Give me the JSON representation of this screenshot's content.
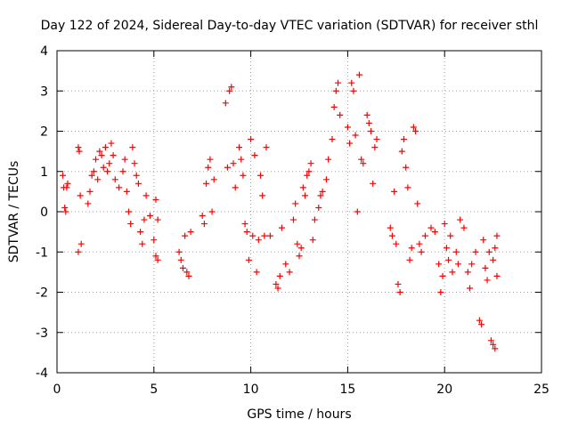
{
  "chart_data": {
    "type": "scatter",
    "title": "Day 122 of 2024, Sidereal Day-to-day VTEC variation (SDTVAR) for receiver sthl",
    "xlabel": "GPS time / hours",
    "ylabel": "SDTVAR / TECUs",
    "xlim": [
      0,
      25
    ],
    "ylim": [
      -4,
      4
    ],
    "xticks": [
      "0",
      "5",
      "10",
      "15",
      "20",
      "25"
    ],
    "yticks": [
      "-4",
      "-3",
      "-2",
      "-1",
      "0",
      "1",
      "2",
      "3",
      "4"
    ],
    "grid": true,
    "marker": "plus",
    "marker_color": "#ff0000",
    "series": [
      {
        "name": "SDTVAR",
        "points": [
          [
            0.3,
            0.9
          ],
          [
            0.35,
            0.6
          ],
          [
            0.4,
            0.1
          ],
          [
            0.45,
            0.0
          ],
          [
            0.5,
            0.6
          ],
          [
            0.55,
            0.7
          ],
          [
            1.1,
            1.6
          ],
          [
            1.15,
            1.5
          ],
          [
            1.2,
            0.4
          ],
          [
            1.25,
            -0.8
          ],
          [
            1.1,
            -1.0
          ],
          [
            1.6,
            0.2
          ],
          [
            1.7,
            0.5
          ],
          [
            1.8,
            0.9
          ],
          [
            1.9,
            1.0
          ],
          [
            2.0,
            1.3
          ],
          [
            2.1,
            0.8
          ],
          [
            2.2,
            1.5
          ],
          [
            2.3,
            1.4
          ],
          [
            2.4,
            1.1
          ],
          [
            2.5,
            1.6
          ],
          [
            2.6,
            1.0
          ],
          [
            2.7,
            1.2
          ],
          [
            2.8,
            1.7
          ],
          [
            2.9,
            1.4
          ],
          [
            3.0,
            0.8
          ],
          [
            3.2,
            0.6
          ],
          [
            3.4,
            1.0
          ],
          [
            3.5,
            1.3
          ],
          [
            3.6,
            0.5
          ],
          [
            3.7,
            0.0
          ],
          [
            3.8,
            -0.3
          ],
          [
            3.9,
            1.6
          ],
          [
            4.0,
            1.2
          ],
          [
            4.1,
            0.9
          ],
          [
            4.2,
            0.7
          ],
          [
            4.3,
            -0.5
          ],
          [
            4.4,
            -0.8
          ],
          [
            4.5,
            -0.2
          ],
          [
            4.6,
            0.4
          ],
          [
            4.8,
            -0.1
          ],
          [
            5.0,
            -0.7
          ],
          [
            5.1,
            -1.1
          ],
          [
            5.2,
            -1.2
          ],
          [
            5.1,
            0.3
          ],
          [
            5.2,
            -0.2
          ],
          [
            6.3,
            -1.0
          ],
          [
            6.4,
            -1.2
          ],
          [
            6.5,
            -1.4
          ],
          [
            6.6,
            -0.6
          ],
          [
            6.7,
            -1.5
          ],
          [
            6.8,
            -1.6
          ],
          [
            6.9,
            -0.5
          ],
          [
            7.5,
            -0.1
          ],
          [
            7.6,
            -0.3
          ],
          [
            7.7,
            0.7
          ],
          [
            7.8,
            1.1
          ],
          [
            7.9,
            1.3
          ],
          [
            8.0,
            0.0
          ],
          [
            8.1,
            0.8
          ],
          [
            8.7,
            2.7
          ],
          [
            8.8,
            1.1
          ],
          [
            8.9,
            3.0
          ],
          [
            9.0,
            3.1
          ],
          [
            9.1,
            1.2
          ],
          [
            9.2,
            0.6
          ],
          [
            9.4,
            1.6
          ],
          [
            9.5,
            1.3
          ],
          [
            9.6,
            0.9
          ],
          [
            9.7,
            -0.3
          ],
          [
            9.8,
            -0.5
          ],
          [
            9.9,
            -1.2
          ],
          [
            10.0,
            1.8
          ],
          [
            10.1,
            -0.6
          ],
          [
            10.2,
            1.4
          ],
          [
            10.3,
            -1.5
          ],
          [
            10.4,
            -0.7
          ],
          [
            10.5,
            0.9
          ],
          [
            10.6,
            0.4
          ],
          [
            10.7,
            -0.6
          ],
          [
            10.8,
            1.6
          ],
          [
            11.0,
            -0.6
          ],
          [
            11.3,
            -1.8
          ],
          [
            11.4,
            -1.9
          ],
          [
            11.5,
            -1.6
          ],
          [
            11.6,
            -0.4
          ],
          [
            11.8,
            -1.3
          ],
          [
            12.0,
            -1.5
          ],
          [
            12.2,
            -0.2
          ],
          [
            12.3,
            0.2
          ],
          [
            12.4,
            -0.8
          ],
          [
            12.5,
            -1.1
          ],
          [
            12.6,
            -0.9
          ],
          [
            12.7,
            0.6
          ],
          [
            12.8,
            0.4
          ],
          [
            12.9,
            0.9
          ],
          [
            13.0,
            1.0
          ],
          [
            13.1,
            1.2
          ],
          [
            13.2,
            -0.7
          ],
          [
            13.3,
            -0.2
          ],
          [
            13.5,
            0.1
          ],
          [
            13.6,
            0.4
          ],
          [
            13.7,
            0.5
          ],
          [
            13.9,
            0.8
          ],
          [
            14.0,
            1.3
          ],
          [
            14.2,
            1.8
          ],
          [
            14.3,
            2.6
          ],
          [
            14.4,
            3.0
          ],
          [
            14.5,
            3.2
          ],
          [
            14.6,
            2.4
          ],
          [
            15.0,
            2.1
          ],
          [
            15.1,
            1.7
          ],
          [
            15.2,
            3.2
          ],
          [
            15.3,
            3.0
          ],
          [
            15.4,
            1.9
          ],
          [
            15.5,
            0.0
          ],
          [
            15.6,
            3.4
          ],
          [
            15.7,
            1.3
          ],
          [
            15.8,
            1.2
          ],
          [
            16.0,
            2.4
          ],
          [
            16.1,
            2.2
          ],
          [
            16.2,
            2.0
          ],
          [
            16.3,
            0.7
          ],
          [
            16.4,
            1.6
          ],
          [
            16.5,
            1.8
          ],
          [
            17.2,
            -0.4
          ],
          [
            17.3,
            -0.6
          ],
          [
            17.4,
            0.5
          ],
          [
            17.5,
            -0.8
          ],
          [
            17.6,
            -1.8
          ],
          [
            17.7,
            -2.0
          ],
          [
            17.8,
            1.5
          ],
          [
            17.9,
            1.8
          ],
          [
            18.0,
            1.1
          ],
          [
            18.1,
            0.6
          ],
          [
            18.2,
            -1.2
          ],
          [
            18.3,
            -0.9
          ],
          [
            18.4,
            2.1
          ],
          [
            18.5,
            2.0
          ],
          [
            18.6,
            0.2
          ],
          [
            18.7,
            -0.8
          ],
          [
            18.8,
            -1.0
          ],
          [
            19.0,
            -0.6
          ],
          [
            19.3,
            -0.4
          ],
          [
            19.5,
            -0.5
          ],
          [
            19.7,
            -1.3
          ],
          [
            19.8,
            -2.0
          ],
          [
            19.9,
            -1.6
          ],
          [
            20.0,
            -0.3
          ],
          [
            20.1,
            -0.9
          ],
          [
            20.2,
            -1.2
          ],
          [
            20.3,
            -0.6
          ],
          [
            20.4,
            -1.5
          ],
          [
            20.6,
            -1.0
          ],
          [
            20.7,
            -1.3
          ],
          [
            20.8,
            -0.2
          ],
          [
            21.0,
            -0.4
          ],
          [
            21.2,
            -1.5
          ],
          [
            21.3,
            -1.9
          ],
          [
            21.4,
            -1.3
          ],
          [
            21.6,
            -1.0
          ],
          [
            21.8,
            -2.7
          ],
          [
            21.9,
            -2.8
          ],
          [
            22.0,
            -0.7
          ],
          [
            22.1,
            -1.4
          ],
          [
            22.2,
            -1.7
          ],
          [
            22.3,
            -1.0
          ],
          [
            22.4,
            -3.2
          ],
          [
            22.5,
            -3.3
          ],
          [
            22.6,
            -3.4
          ],
          [
            22.5,
            -1.2
          ],
          [
            22.6,
            -0.9
          ],
          [
            22.7,
            -1.6
          ],
          [
            22.7,
            -0.6
          ]
        ]
      }
    ]
  }
}
